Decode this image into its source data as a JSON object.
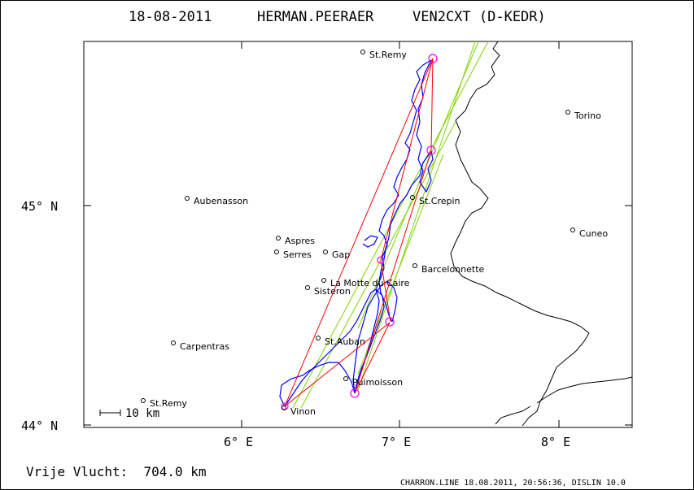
{
  "header": {
    "date": "18-08-2011",
    "pilot": "HERMAN.PEERAER",
    "glider": "VEN2CXT (D-KEDR)"
  },
  "axes": {
    "lat_labels": [
      {
        "lat": 45,
        "text": "45° N"
      },
      {
        "lat": 44,
        "text": "44° N"
      }
    ],
    "lon_labels": [
      {
        "lon": 6,
        "text": "6° E"
      },
      {
        "lon": 7,
        "text": "7° E"
      },
      {
        "lon": 8,
        "text": "8° E"
      }
    ]
  },
  "places": [
    {
      "name": "St.Remy",
      "lon": 6.75,
      "lat": 45.7
    },
    {
      "name": "Torino",
      "lon": 8.05,
      "lat": 45.43
    },
    {
      "name": "Aubenasson",
      "lon": 5.65,
      "lat": 45.04
    },
    {
      "name": "St.Crepin",
      "lon": 7.11,
      "lat": 45.04
    },
    {
      "name": "Cuneo",
      "lon": 8.09,
      "lat": 44.89
    },
    {
      "name": "Aspres",
      "lon": 6.22,
      "lat": 44.85
    },
    {
      "name": "Serres",
      "lon": 6.22,
      "lat": 44.79
    },
    {
      "name": "Gap",
      "lon": 6.52,
      "lat": 44.79
    },
    {
      "name": "Barcelonnette",
      "lon": 7.12,
      "lat": 44.72
    },
    {
      "name": "La Motte du Caire",
      "lon": 6.52,
      "lat": 44.66
    },
    {
      "name": "Sisteron",
      "lon": 6.42,
      "lat": 44.62
    },
    {
      "name": "St.Auban",
      "lon": 6.48,
      "lat": 44.41
    },
    {
      "name": "Carpentras",
      "lon": 5.58,
      "lat": 44.39
    },
    {
      "name": "Puimoisson",
      "lon": 6.63,
      "lat": 44.22
    },
    {
      "name": "St.Remy",
      "lon": 5.42,
      "lat": 44.12
    },
    {
      "name": "Vinon",
      "lon": 6.28,
      "lat": 44.08
    }
  ],
  "turnpoints": [
    {
      "lon": 7.23,
      "lat": 45.67
    },
    {
      "lon": 7.21,
      "lat": 45.25
    },
    {
      "lon": 6.71,
      "lat": 44.15
    },
    {
      "lon": 6.92,
      "lat": 44.48
    },
    {
      "lon": 6.26,
      "lat": 44.08
    }
  ],
  "scale": {
    "label": "10 km"
  },
  "footer": {
    "distance": "Vrije Vlucht:  704.0 km",
    "credits": "CHARRON.LINE 18.08.2011, 20:56:36, DISLIN 10.0"
  },
  "colors": {
    "track": "#0000ff",
    "legs": "#ff0000",
    "sector_lines": "#7fd400",
    "turnpoint_circle": "#ff00ff",
    "border": "#000000"
  }
}
